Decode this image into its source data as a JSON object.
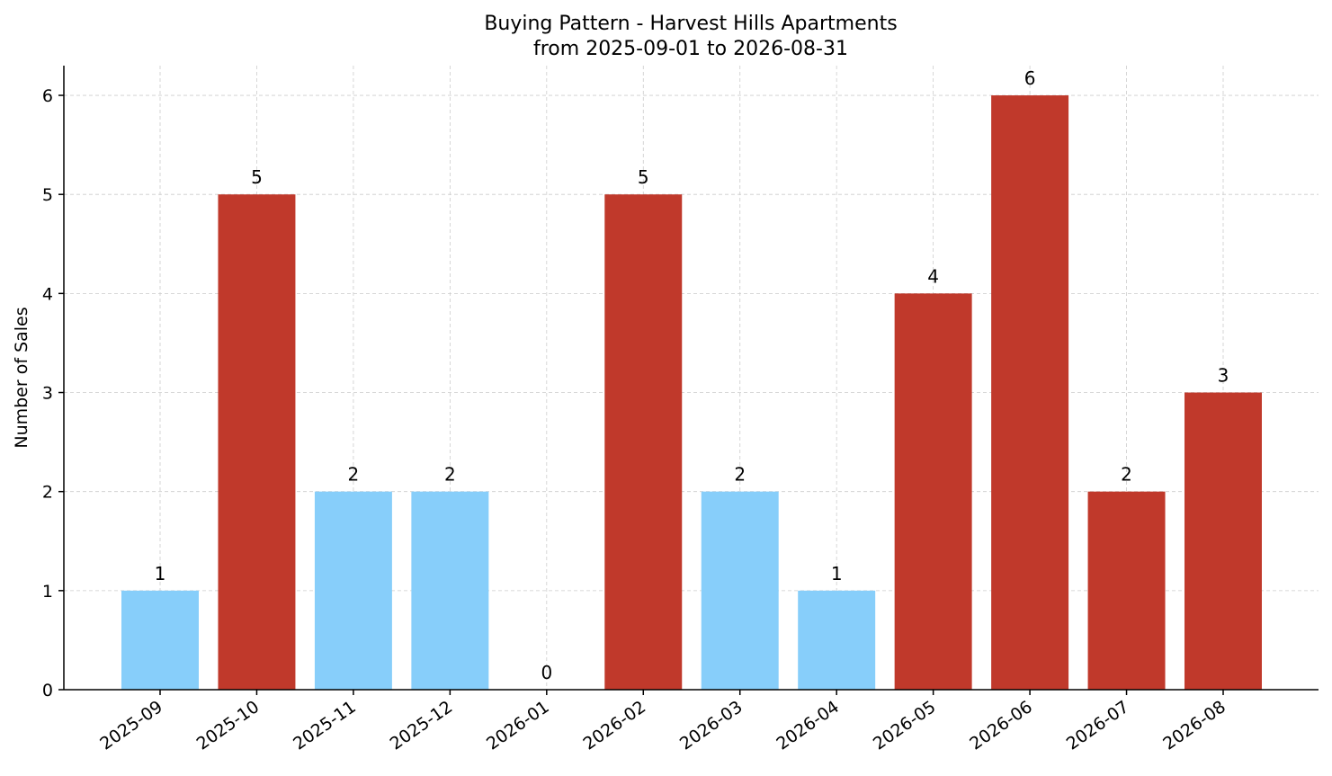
{
  "chart_data": {
    "type": "bar",
    "title": "Buying Pattern - Harvest Hills Apartments",
    "subtitle": "from 2025-09-01 to 2026-08-31",
    "xlabel": "",
    "ylabel": "Number of Sales",
    "categories": [
      "2025-09",
      "2025-10",
      "2025-11",
      "2025-12",
      "2026-01",
      "2026-02",
      "2026-03",
      "2026-04",
      "2026-05",
      "2026-06",
      "2026-07",
      "2026-08"
    ],
    "values": [
      1,
      5,
      2,
      2,
      0,
      5,
      2,
      1,
      4,
      6,
      2,
      3
    ],
    "bar_colors": [
      "#87cefa",
      "#c0392b",
      "#87cefa",
      "#87cefa",
      "#87cefa",
      "#c0392b",
      "#87cefa",
      "#87cefa",
      "#c0392b",
      "#c0392b",
      "#c0392b",
      "#c0392b"
    ],
    "data_labels": [
      "1",
      "5",
      "2",
      "2",
      "0",
      "5",
      "2",
      "1",
      "4",
      "6",
      "2",
      "3"
    ],
    "ylim": [
      0,
      6.3
    ],
    "yticks": [
      0,
      1,
      2,
      3,
      4,
      5,
      6
    ],
    "ytick_labels": [
      "0",
      "1",
      "2",
      "3",
      "4",
      "5",
      "6"
    ],
    "grid": true,
    "legend": "none"
  }
}
